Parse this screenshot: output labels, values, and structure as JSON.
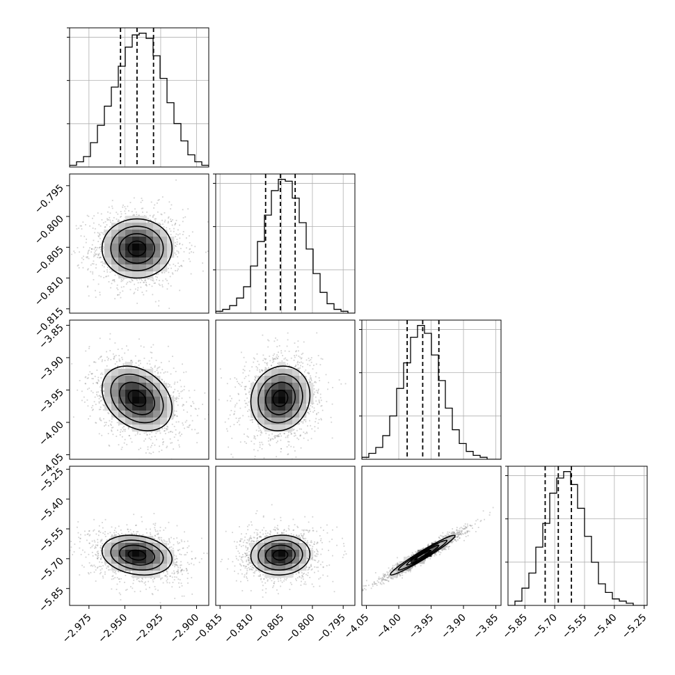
{
  "chart_data": {
    "type": "corner",
    "grid": true,
    "parameters": [
      {
        "ticks": [
          -2.975,
          -2.95,
          -2.925,
          -2.9
        ],
        "tick_labels": [
          "−2.975",
          "−2.950",
          "−2.925",
          "−2.900"
        ],
        "range": [
          -2.9885,
          -2.8915
        ],
        "mean": -2.9415,
        "sd": 0.0122,
        "quantiles": [
          -2.953,
          -2.9415,
          -2.93
        ]
      },
      {
        "ticks": [
          -0.815,
          -0.81,
          -0.805,
          -0.8,
          -0.795
        ],
        "tick_labels": [
          "−0.815",
          "−0.810",
          "−0.805",
          "−0.800",
          "−0.795"
        ],
        "range": [
          -0.8157,
          -0.7931
        ],
        "mean": -0.8052,
        "sd": 0.0024,
        "quantiles": [
          -0.8076,
          -0.8052,
          -0.8028
        ]
      },
      {
        "ticks": [
          -4.05,
          -4.0,
          -3.95,
          -3.9,
          -3.85
        ],
        "tick_labels": [
          "−4.05",
          "−4.00",
          "−3.95",
          "−3.90",
          "−3.85"
        ],
        "range": [
          -4.057,
          -3.842
        ],
        "mean": -3.963,
        "sd": 0.025,
        "quantiles": [
          -3.987,
          -3.963,
          -3.938
        ]
      },
      {
        "ticks": [
          -5.85,
          -5.7,
          -5.55,
          -5.4,
          -5.25
        ],
        "tick_labels": [
          "−5.85",
          "−5.70",
          "−5.55",
          "−5.40",
          "−5.25"
        ],
        "range": [
          -5.935,
          -5.235
        ],
        "mean": -5.682,
        "sd": 0.05,
        "quantiles": [
          -5.748,
          -5.682,
          -5.616
        ]
      }
    ],
    "histograms": [
      {
        "values": [
          1,
          3,
          6,
          14,
          24,
          35,
          46,
          58,
          69,
          76,
          77,
          74,
          64,
          51,
          37,
          25,
          15,
          7,
          3,
          1
        ]
      },
      {
        "values": [
          1,
          2,
          4,
          8,
          14,
          25,
          38,
          52,
          65,
          71,
          70,
          61,
          48,
          34,
          21,
          11,
          5,
          2,
          1,
          0
        ]
      },
      {
        "values": [
          1,
          3,
          6,
          12,
          22,
          36,
          49,
          62,
          68,
          64,
          53,
          40,
          26,
          15,
          8,
          4,
          2,
          1,
          0,
          0
        ]
      },
      {
        "values": [
          0,
          2,
          8,
          15,
          27,
          38,
          52,
          59,
          62,
          56,
          45,
          32,
          20,
          10,
          6,
          3,
          2,
          1,
          0,
          0
        ]
      }
    ],
    "correlations": [
      {
        "row": 1,
        "col": 0,
        "r": 0.0
      },
      {
        "row": 2,
        "col": 0,
        "r": -0.3
      },
      {
        "row": 2,
        "col": 1,
        "r": 0.1
      },
      {
        "row": 3,
        "col": 0,
        "r": -0.2
      },
      {
        "row": 3,
        "col": 1,
        "r": 0.05
      },
      {
        "row": 3,
        "col": 2,
        "r": 0.97
      }
    ]
  }
}
